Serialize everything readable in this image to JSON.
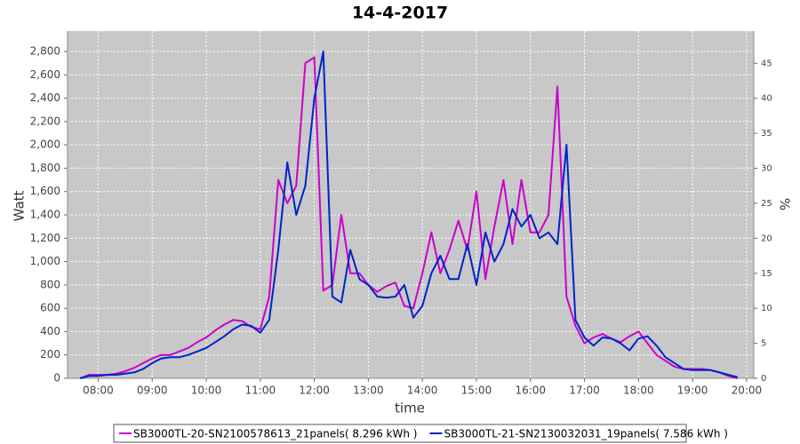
{
  "chart_data": {
    "type": "line",
    "title": "14-4-2017",
    "x_label": "time",
    "y_label": "Watt",
    "y2_label": "%",
    "x": [
      "07:40",
      "07:50",
      "08:00",
      "08:10",
      "08:20",
      "08:30",
      "08:40",
      "08:50",
      "09:00",
      "09:10",
      "09:20",
      "09:30",
      "09:40",
      "09:50",
      "10:00",
      "10:10",
      "10:20",
      "10:30",
      "10:40",
      "10:50",
      "11:00",
      "11:10",
      "11:20",
      "11:30",
      "11:40",
      "11:50",
      "12:00",
      "12:10",
      "12:20",
      "12:30",
      "12:40",
      "12:50",
      "13:00",
      "13:10",
      "13:20",
      "13:30",
      "13:40",
      "13:50",
      "14:00",
      "14:10",
      "14:20",
      "14:30",
      "14:40",
      "14:50",
      "15:00",
      "15:10",
      "15:20",
      "15:30",
      "15:40",
      "15:50",
      "16:00",
      "16:10",
      "16:20",
      "16:30",
      "16:40",
      "16:50",
      "17:00",
      "17:10",
      "17:20",
      "17:30",
      "17:40",
      "17:50",
      "18:00",
      "18:10",
      "18:20",
      "18:30",
      "18:40",
      "18:50",
      "19:00",
      "19:10",
      "19:20",
      "19:30",
      "19:40",
      "19:50"
    ],
    "series": [
      {
        "name": "SB3000TL-20-SN2100578613_21panels( 8.296 kWh )",
        "color": "#cc00cc",
        "values": [
          0,
          30,
          30,
          30,
          40,
          60,
          90,
          130,
          170,
          200,
          200,
          230,
          260,
          310,
          350,
          410,
          460,
          500,
          490,
          440,
          420,
          700,
          1700,
          1500,
          1650,
          2700,
          2750,
          750,
          800,
          1400,
          900,
          900,
          800,
          740,
          790,
          820,
          620,
          600,
          900,
          1250,
          900,
          1100,
          1350,
          1100,
          1600,
          850,
          1300,
          1700,
          1150,
          1700,
          1250,
          1250,
          1400,
          2500,
          700,
          450,
          300,
          350,
          380,
          340,
          310,
          360,
          400,
          300,
          200,
          150,
          100,
          80,
          80,
          80,
          70,
          50,
          20,
          0
        ]
      },
      {
        "name": "SB3000TL-21-SN2130032031_19panels( 7.586 kWh )",
        "color": "#0022cc",
        "values": [
          0,
          20,
          20,
          30,
          30,
          40,
          50,
          80,
          130,
          170,
          180,
          180,
          200,
          230,
          260,
          310,
          360,
          420,
          460,
          450,
          390,
          500,
          1100,
          1850,
          1400,
          1650,
          2400,
          2800,
          700,
          650,
          1100,
          850,
          800,
          700,
          690,
          700,
          800,
          520,
          620,
          900,
          1050,
          850,
          850,
          1150,
          800,
          1250,
          1000,
          1150,
          1450,
          1300,
          1400,
          1200,
          1250,
          1150,
          2000,
          500,
          350,
          280,
          350,
          340,
          300,
          240,
          340,
          360,
          280,
          180,
          130,
          80,
          70,
          70,
          70,
          50,
          30,
          10
        ]
      }
    ],
    "xlim": [
      "07:26",
      "20:08"
    ],
    "xticks": [
      "08:00",
      "09:00",
      "10:00",
      "11:00",
      "12:00",
      "13:00",
      "14:00",
      "15:00",
      "16:00",
      "17:00",
      "18:00",
      "19:00",
      "20:00"
    ],
    "ylim": [
      0,
      2975
    ],
    "yticks": [
      0,
      200,
      400,
      600,
      800,
      {
        "value": 1000,
        "label": "1,000"
      },
      {
        "value": 1200,
        "label": "1,200"
      },
      {
        "value": 1400,
        "label": "1,400"
      },
      {
        "value": 1600,
        "label": "1,600"
      },
      {
        "value": 1800,
        "label": "1,800"
      },
      {
        "value": 2000,
        "label": "2,000"
      },
      {
        "value": 2200,
        "label": "2,200"
      },
      {
        "value": 2400,
        "label": "2,400"
      },
      {
        "value": 2600,
        "label": "2,600"
      },
      {
        "value": 2800,
        "label": "2,800"
      }
    ],
    "y2lim": [
      0,
      49.6
    ],
    "y2ticks": [
      0,
      5,
      10,
      15,
      20,
      25,
      30,
      35,
      40,
      45
    ],
    "grid": true
  }
}
